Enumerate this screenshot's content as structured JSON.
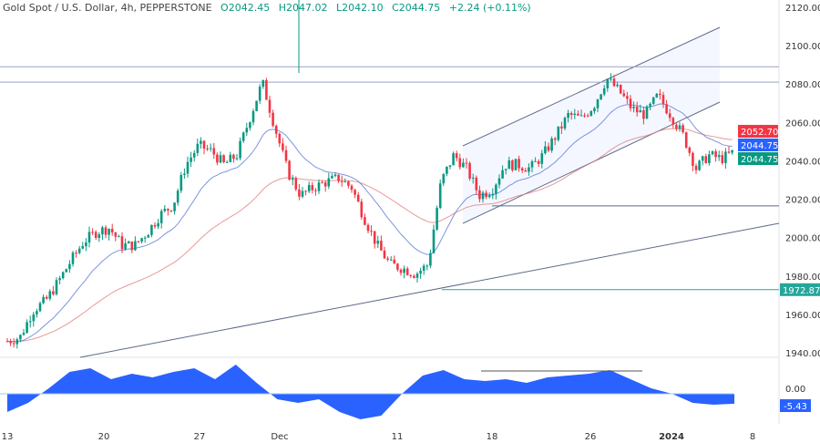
{
  "header": {
    "symbol": "Gold Spot / U.S. Dollar, 4h, PEPPERSTONE",
    "open": "O2042.45",
    "high": "H2047.02",
    "low": "L2042.10",
    "close": "C2044.75",
    "change": "+2.24 (+0.11%)"
  },
  "colors": {
    "up": "#089981",
    "down": "#f23645",
    "ma_fast": "#5b7ad6",
    "ma_slow": "#e08080",
    "osc": "#2962ff",
    "line": "#5d6a8a",
    "teal": "#26a69a"
  },
  "chart_data": {
    "type": "candlestick",
    "ylim": [
      1940,
      2120
    ],
    "yticks": [
      "2120.00",
      "2100.00",
      "2080.00",
      "2060.00",
      "2040.00",
      "2020.00",
      "2000.00",
      "1980.00",
      "1960.00",
      "1940.00"
    ],
    "xticks": [
      "13",
      "20",
      "27",
      "Dec",
      "11",
      "18",
      "26",
      "2024",
      "8"
    ],
    "price_tags": [
      {
        "label": "2052.70",
        "color": "#f23645",
        "value": 2052.7
      },
      {
        "label": "2044.75",
        "color": "#2962ff",
        "value": 2044.75
      },
      {
        "label": "2044.75",
        "color": "#089981",
        "value": 2044.75
      },
      {
        "label": "1972.87",
        "color": "#26a69a",
        "value": 1972.87
      }
    ],
    "closes": [
      1946,
      1948,
      1962,
      1967,
      1977,
      1988,
      1998,
      2003,
      2005,
      1996,
      1996,
      2003,
      2012,
      2017,
      2038,
      2048,
      2045,
      2038,
      2043,
      2062,
      2081,
      2057,
      2034,
      2022,
      2026,
      2029,
      2031,
      2026,
      2010,
      1996,
      1986,
      1984,
      1981,
      1986,
      2029,
      2043,
      2036,
      2022,
      2025,
      2038,
      2038,
      2036,
      2043,
      2053,
      2064,
      2062,
      2069,
      2083,
      2076,
      2067,
      2064,
      2074,
      2064,
      2053,
      2036,
      2043,
      2041,
      2044.75
    ],
    "levels": [
      2089,
      2081,
      2016.5,
      1972.87
    ],
    "oscillator": {
      "zero_label": "0.00",
      "value_label": "-5.43",
      "values": [
        -10,
        -5,
        3,
        12,
        14,
        8,
        11,
        9,
        12,
        14,
        8,
        16,
        6,
        -3,
        -5,
        -3,
        -10,
        -14,
        -12,
        0,
        10,
        13,
        8,
        7,
        8,
        6,
        9,
        10,
        11,
        13,
        8,
        3,
        0,
        -5,
        -6,
        -5.43
      ]
    }
  }
}
